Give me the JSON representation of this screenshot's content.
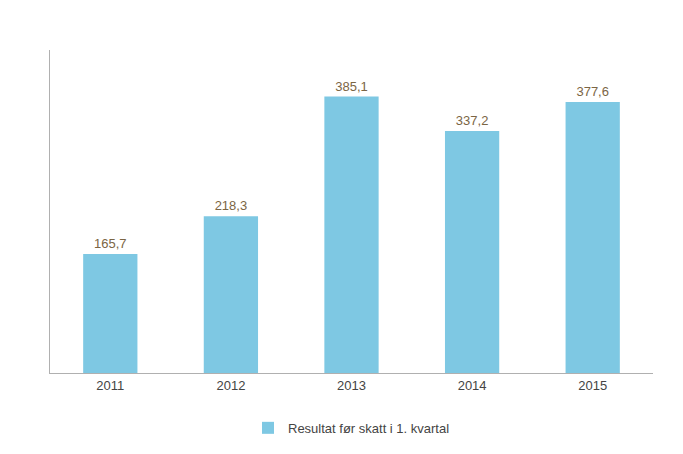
{
  "chart_data": {
    "type": "bar",
    "categories": [
      "2011",
      "2012",
      "2013",
      "2014",
      "2015"
    ],
    "series": [
      {
        "name": "Resultat før skatt i 1. kvartal",
        "color": "#7EC8E3",
        "values": [
          165.7,
          218.3,
          385.1,
          337.2,
          377.6
        ],
        "value_labels": [
          "165,7",
          "218,3",
          "385,1",
          "337,2",
          "377,6"
        ]
      }
    ],
    "ylim": [
      0,
      450
    ],
    "data_labels": true,
    "tick_labels": "x",
    "grid": false,
    "legend": "bottom"
  }
}
